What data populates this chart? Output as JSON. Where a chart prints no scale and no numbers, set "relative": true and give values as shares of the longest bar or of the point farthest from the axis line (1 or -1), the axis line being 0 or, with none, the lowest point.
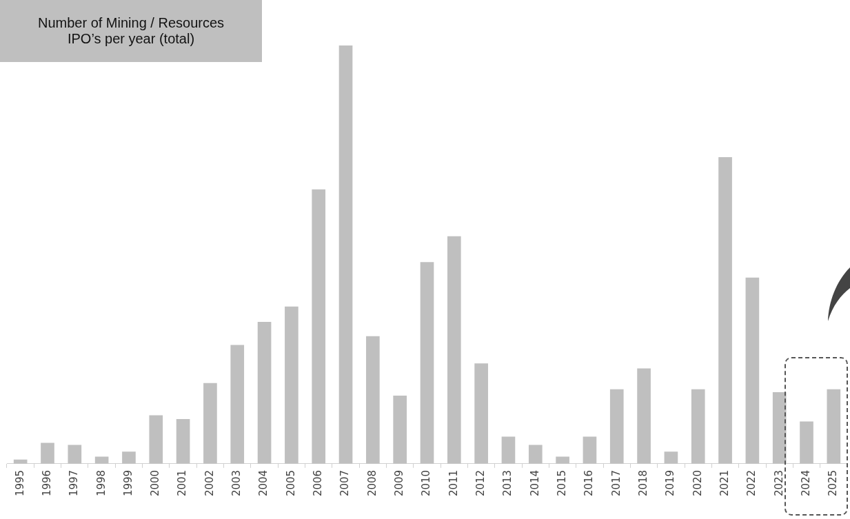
{
  "chart_data": {
    "type": "bar",
    "title": "Number of Mining / Resources IPO’s per year (total)",
    "relative": true,
    "categories": [
      "1995",
      "1996",
      "1997",
      "1998",
      "1999",
      "2000",
      "2001",
      "2002",
      "2003",
      "2004",
      "2005",
      "2006",
      "2007",
      "2008",
      "2009",
      "2010",
      "2011",
      "2012",
      "2013",
      "2014",
      "2015",
      "2016",
      "2017",
      "2018",
      "2019",
      "2020",
      "2021",
      "2022",
      "2023",
      "2024",
      "2025"
    ],
    "values": [
      0.01,
      0.05,
      0.045,
      0.017,
      0.029,
      0.116,
      0.107,
      0.193,
      0.284,
      0.339,
      0.376,
      0.656,
      1,
      0.305,
      0.163,
      0.482,
      0.544,
      0.24,
      0.065,
      0.045,
      0.017,
      0.065,
      0.178,
      0.228,
      0.029,
      0.178,
      0.733,
      0.445,
      0.171,
      0.101,
      0.178
    ],
    "color": "#bfbfbf",
    "grid": false,
    "legend": false
  }
}
